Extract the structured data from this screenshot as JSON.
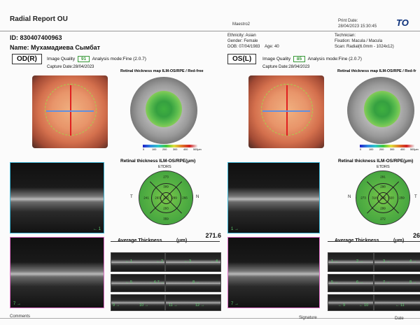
{
  "header": {
    "title": "Radial Report OU",
    "device": "Maestro2",
    "print_date_label": "Print Date:",
    "print_date": "28/04/2023 15:30:45",
    "logo": "TO"
  },
  "patient": {
    "id": "ID: 830407400963",
    "name": "Name: Мухамадиева Сымбат",
    "ethnicity": "Ethnicity: Asian",
    "gender": "Gender: Female",
    "dob": "DOB: 07/04/1983",
    "age": "Age: 40",
    "technician": "Technician:",
    "fixation": "Fixation: Macula / Macula",
    "scan": "Scan: Radial(6.0mm - 1024x12)"
  },
  "od": {
    "eye_label": "OD(R)",
    "iq_label": "Image Quality",
    "iq_value": "91",
    "analysis": "Analysis mode:Fine (2.0.7)",
    "capture": "Capture Date:28/04/2023",
    "map_title": "Retinal thickness map ILM-OS/RPE / Red-free",
    "etdrs_title": "Retinal thickness ILM-OS/RPE(μm)",
    "etdrs_label": "ETDRS",
    "side_left": "T",
    "side_right": "N",
    "etdrs": {
      "outer_top": "273",
      "inner_top": "309",
      "center": "233",
      "inner_left": "293",
      "inner_right": "299",
      "outer_left": "241",
      "outer_right": "266",
      "inner_bottom": "293",
      "outer_bottom": "359",
      "ring_n1": "320",
      "ring_n2": "321"
    },
    "avg_label": "Average Thickness",
    "avg_unit": "(μm)",
    "avg_value": "271.6",
    "bscan1_label": "← 1",
    "bscan2_label": "7 →",
    "thumbs": [
      "← 1",
      "← 2",
      "← 3",
      "← 4",
      "← 5",
      "← 6 7 →",
      "8 →",
      "9 →",
      "10 →",
      "11 →",
      "12 →"
    ]
  },
  "os": {
    "eye_label": "OS(L)",
    "iq_label": "Image Quality",
    "iq_value": "85",
    "analysis": "Analysis mode:Fine (2.0.7)",
    "capture": "Capture Date:28/04/2023",
    "map_title": "Retinal thickness map ILM-OS/RPE / Red-fr",
    "etdrs_title": "Retinal thickness ILM-OS/RPE(μm)",
    "etdrs_label": "ETDRS",
    "side_left": "N",
    "side_right": "T",
    "etdrs": {
      "outer_top": "291",
      "inner_top": "298",
      "center": "238",
      "inner_left": "318",
      "inner_right": "320",
      "outer_left": "273",
      "outer_right": "259",
      "inner_bottom": "299",
      "outer_bottom": "272",
      "ring_n1": "311",
      "ring_n2": "309"
    },
    "avg_label": "Average Thickness",
    "avg_unit": "(μm)",
    "avg_value": "26",
    "bscan1_label": "1 →",
    "bscan2_label": "7 →",
    "thumbs": [
      "1 →",
      "2 →",
      "3 →",
      "4 →",
      "5 →",
      "6 →",
      "7 →",
      "8 →",
      "← 9",
      "← 10",
      "← 11"
    ]
  },
  "colorbar": {
    "ticks": [
      "0",
      "100",
      "200",
      "300",
      "400",
      "500μm"
    ]
  },
  "footer": {
    "comments": "Comments",
    "signature": "Signature",
    "date": "Date"
  },
  "colors": {
    "bscan_border": "#3fb6d6",
    "bscan2_border": "#e070c8",
    "iq_green": "#3a9a3a"
  }
}
